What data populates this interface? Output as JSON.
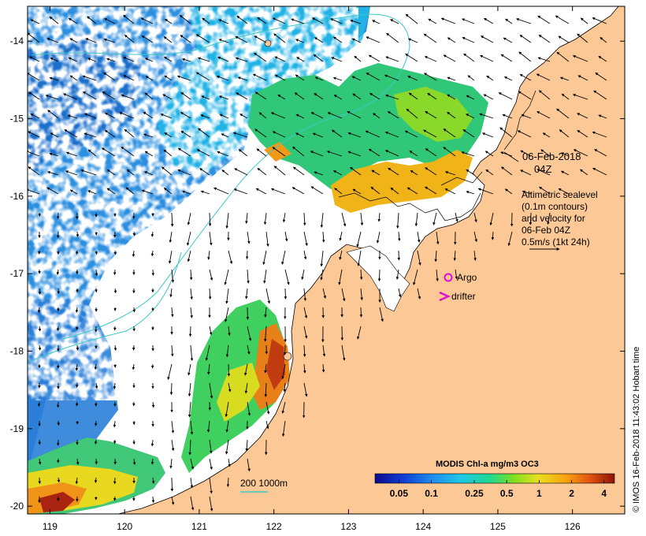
{
  "map": {
    "lon_range": [
      118.7,
      126.7
    ],
    "lat_range": [
      -20.1,
      -13.55
    ],
    "lon_ticks": [
      119,
      120,
      121,
      122,
      123,
      124,
      125,
      126
    ],
    "lat_ticks": [
      -14,
      -15,
      -16,
      -17,
      -18,
      -19,
      -20
    ],
    "lon_tick_labels": [
      "119",
      "120",
      "121",
      "122",
      "123",
      "124",
      "125",
      "126"
    ],
    "lat_tick_labels": [
      "-14",
      "-15",
      "-16",
      "-17",
      "-18",
      "-19",
      "-20"
    ]
  },
  "annotations": {
    "date_line1": "06-Feb-2018",
    "date_line2": "04Z",
    "alt_line1": "Altimetric sealevel",
    "alt_line2": "(0.1m contours)",
    "alt_line3": "and velocity for",
    "alt_line4": "06-Feb 04Z",
    "alt_line5": "0.5m/s (1kt 24h)"
  },
  "legend": {
    "argo_label": "Argo",
    "drifter_label": "drifter",
    "argo_color": "#e010d0",
    "drifter_color": "#e010d0",
    "bathy_label": "200  1000m",
    "bathy_color": "#3cc8c8"
  },
  "colorbar": {
    "title": "MODIS Chl-a mg/m3 OC3",
    "tick_labels": [
      "0.05",
      "0.1",
      "0.25",
      "0.5",
      "1",
      "2",
      "4"
    ],
    "tick_values": [
      0.05,
      0.1,
      0.25,
      0.5,
      1,
      2,
      4
    ],
    "range": [
      0.03,
      5
    ],
    "colors": [
      "#0b0b8c",
      "#0f3fd6",
      "#1e8ef0",
      "#20c8e6",
      "#20d890",
      "#80e020",
      "#e8e020",
      "#f8a010",
      "#e05010",
      "#8c1408"
    ]
  },
  "colors": {
    "land": "#fcc896",
    "ocean_nodata": "#ffffff",
    "coast": "#000000"
  },
  "credit": "© IMOS 16-Feb-2018 11:43:02 Hobart time"
}
